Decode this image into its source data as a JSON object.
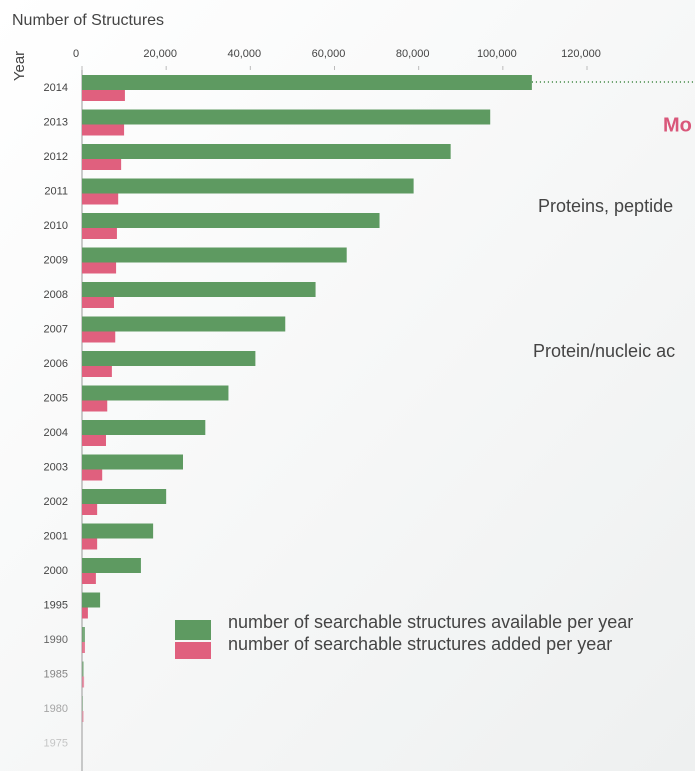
{
  "chart_data": {
    "type": "hbar",
    "title": "Number of Structures",
    "y_label": "Year",
    "categories": [
      "2014",
      "2013",
      "2012",
      "2011",
      "2010",
      "2009",
      "2008",
      "2007",
      "2006",
      "2005",
      "2004",
      "2003",
      "2002",
      "2001",
      "2000",
      "1995",
      "1990",
      "1985",
      "1980",
      "1975"
    ],
    "series": [
      {
        "name": "number of searchable structures available per year",
        "color": "#5e9a61",
        "values": [
          106900,
          97000,
          87600,
          78800,
          70700,
          62900,
          55500,
          48300,
          41200,
          34800,
          29300,
          24000,
          20000,
          16900,
          14000,
          4300,
          700,
          400,
          200,
          0
        ]
      },
      {
        "name": "number of searchable structures added per year",
        "color": "#e0607e",
        "values": [
          10200,
          10000,
          9300,
          8600,
          8300,
          8100,
          7600,
          7900,
          7100,
          6000,
          5700,
          4800,
          3600,
          3600,
          3300,
          1400,
          700,
          500,
          400,
          0
        ]
      }
    ],
    "xlim": [
      0,
      120000
    ],
    "xticks": [
      0,
      {
        "value": 20000,
        "label": "20,000"
      },
      {
        "value": 40000,
        "label": "40,000"
      },
      {
        "value": 60000,
        "label": "60,000"
      },
      {
        "value": 80000,
        "label": "80,000"
      },
      {
        "value": 100000,
        "label": "100,000"
      },
      {
        "value": 120000,
        "label": "120,000"
      }
    ],
    "annotations": [
      "Mo",
      "Proteins, peptide",
      "Protein/nucleic ac"
    ]
  }
}
